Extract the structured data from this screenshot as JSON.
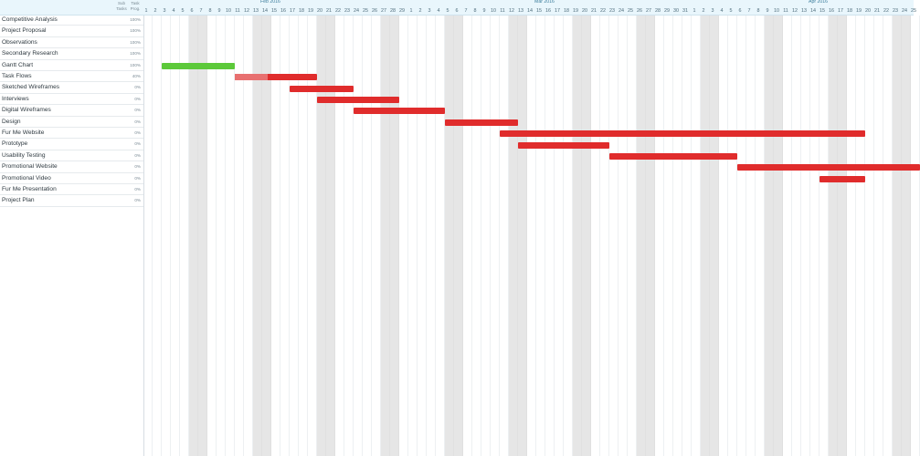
{
  "columns": {
    "sub_tasks": "Sub Tasks",
    "task_prog": "Task Prog."
  },
  "months": [
    {
      "label": "Feb 2016",
      "day_index": 13
    },
    {
      "label": "Mar 2016",
      "day_index": 43
    },
    {
      "label": "Apr 2016",
      "day_index": 73
    }
  ],
  "days": [
    "1",
    "2",
    "3",
    "4",
    "5",
    "6",
    "7",
    "8",
    "9",
    "10",
    "11",
    "12",
    "13",
    "14",
    "15",
    "16",
    "17",
    "18",
    "19",
    "20",
    "21",
    "22",
    "23",
    "24",
    "25",
    "26",
    "27",
    "28",
    "29",
    "1",
    "2",
    "3",
    "4",
    "5",
    "6",
    "7",
    "8",
    "9",
    "10",
    "11",
    "12",
    "13",
    "14",
    "15",
    "16",
    "17",
    "18",
    "19",
    "20",
    "21",
    "22",
    "23",
    "24",
    "25",
    "26",
    "27",
    "28",
    "29",
    "30",
    "31",
    "1",
    "2",
    "3",
    "4",
    "5",
    "6",
    "7",
    "8",
    "9",
    "10",
    "11",
    "12",
    "13",
    "14",
    "15",
    "16",
    "17",
    "18",
    "19",
    "20",
    "21",
    "22",
    "23",
    "24",
    "25"
  ],
  "weekend_pairs_start": [
    5,
    12,
    19,
    26,
    33,
    40,
    47,
    54,
    61,
    68,
    75,
    82
  ],
  "tasks": [
    {
      "name": "Competitive Analysis",
      "progress": "100%"
    },
    {
      "name": "Project Proposal",
      "progress": "100%"
    },
    {
      "name": "Observations",
      "progress": "100%"
    },
    {
      "name": "Secondary Research",
      "progress": "100%"
    },
    {
      "name": "Gantt Chart",
      "progress": "100%",
      "bar": {
        "start": 2,
        "end": 10,
        "color": "#5cc93a"
      }
    },
    {
      "name": "Task Flows",
      "progress": "40%",
      "bar": {
        "start": 10,
        "end": 19,
        "color": "#e02c2c",
        "done_fraction": 0.4
      }
    },
    {
      "name": "Sketched Wireframes",
      "progress": "0%",
      "bar": {
        "start": 16,
        "end": 23,
        "color": "#e02c2c"
      }
    },
    {
      "name": "Interviews",
      "progress": "0%",
      "bar": {
        "start": 19,
        "end": 28,
        "color": "#e02c2c"
      }
    },
    {
      "name": "Digital Wireframes",
      "progress": "0%",
      "bar": {
        "start": 23,
        "end": 33,
        "color": "#e02c2c"
      }
    },
    {
      "name": "Design",
      "progress": "0%",
      "bar": {
        "start": 33,
        "end": 41,
        "color": "#e02c2c"
      }
    },
    {
      "name": "Fur Me Website",
      "progress": "0%",
      "bar": {
        "start": 39,
        "end": 79,
        "color": "#e02c2c"
      }
    },
    {
      "name": "Prototype",
      "progress": "0%",
      "bar": {
        "start": 41,
        "end": 51,
        "color": "#e02c2c"
      }
    },
    {
      "name": "Usability Testing",
      "progress": "0%",
      "bar": {
        "start": 51,
        "end": 65,
        "color": "#e02c2c"
      }
    },
    {
      "name": "Promotional Website",
      "progress": "0%",
      "bar": {
        "start": 65,
        "end": 85,
        "color": "#e02c2c"
      }
    },
    {
      "name": "Promotional Video",
      "progress": "0%",
      "bar": {
        "start": 74,
        "end": 79,
        "color": "#e02c2c"
      }
    },
    {
      "name": "Fur Me Presentation",
      "progress": "0%"
    },
    {
      "name": "Project Plan",
      "progress": "0%"
    }
  ]
}
